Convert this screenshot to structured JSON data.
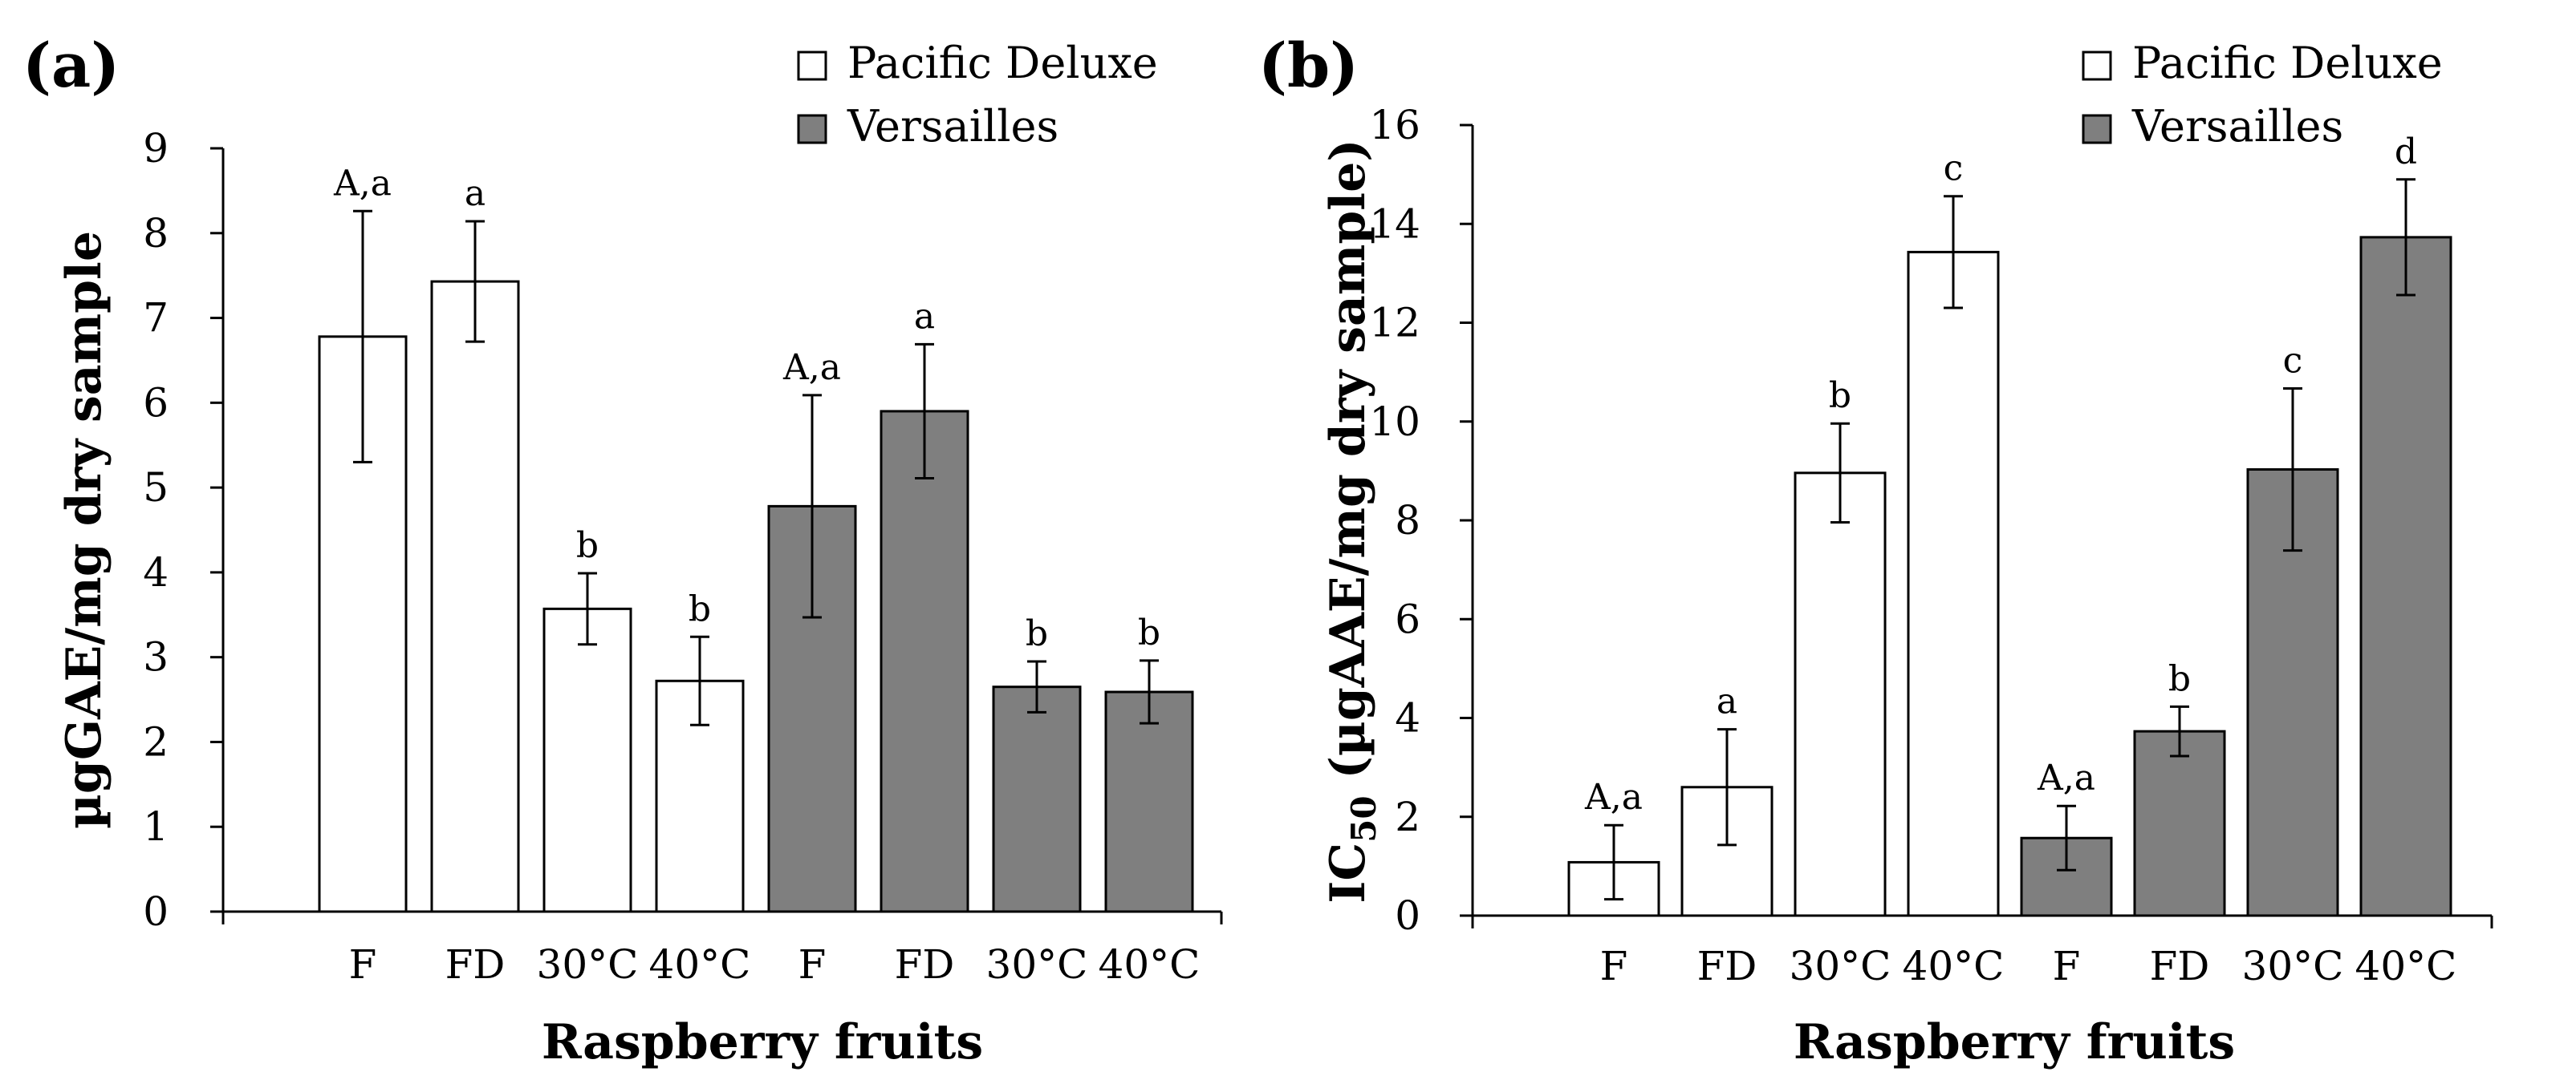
{
  "colors": {
    "pacific": "#ffffff",
    "versailles": "#7f7f7f",
    "stroke": "#000000"
  },
  "chart_data": [
    {
      "type": "bar",
      "panel_label": "(a)",
      "title": "",
      "xlabel": "Raspberry fruits",
      "ylabel": "µgGAE/mg dry sample",
      "ylim": [
        0,
        9
      ],
      "yticks": [
        0,
        1,
        2,
        3,
        4,
        5,
        6,
        7,
        8,
        9
      ],
      "categories": [
        "F",
        "FD",
        "30°C",
        "40°C",
        "F",
        "FD",
        "30°C",
        "40°C"
      ],
      "legend": [
        {
          "name": "Pacific Deluxe",
          "color": "#ffffff"
        },
        {
          "name": "Versailles",
          "color": "#7f7f7f"
        }
      ],
      "bars": [
        {
          "category": "F",
          "series": "Pacific Deluxe",
          "value": 6.78,
          "error": 1.48,
          "label": "A,a"
        },
        {
          "category": "FD",
          "series": "Pacific Deluxe",
          "value": 7.43,
          "error": 0.71,
          "label": "a"
        },
        {
          "category": "30°C",
          "series": "Pacific Deluxe",
          "value": 3.57,
          "error": 0.42,
          "label": "b"
        },
        {
          "category": "40°C",
          "series": "Pacific Deluxe",
          "value": 2.72,
          "error": 0.52,
          "label": "b"
        },
        {
          "category": "F",
          "series": "Versailles",
          "value": 4.78,
          "error": 1.31,
          "label": "A,a"
        },
        {
          "category": "FD",
          "series": "Versailles",
          "value": 5.9,
          "error": 0.79,
          "label": "a"
        },
        {
          "category": "30°C",
          "series": "Versailles",
          "value": 2.65,
          "error": 0.3,
          "label": "b"
        },
        {
          "category": "40°C",
          "series": "Versailles",
          "value": 2.59,
          "error": 0.37,
          "label": "b"
        }
      ]
    },
    {
      "type": "bar",
      "panel_label": "(b)",
      "title": "",
      "xlabel": "Raspberry fruits",
      "ylabel_main": "IC",
      "ylabel_sub": "50",
      "ylabel_rest": " (µgAAE/mg dry sample)",
      "ylim": [
        0,
        16
      ],
      "yticks": [
        0,
        2,
        4,
        6,
        8,
        10,
        12,
        14,
        16
      ],
      "categories": [
        "F",
        "FD",
        "30°C",
        "40°C",
        "F",
        "FD",
        "30°C",
        "40°C"
      ],
      "legend": [
        {
          "name": "Pacific Deluxe",
          "color": "#ffffff"
        },
        {
          "name": "Versailles",
          "color": "#7f7f7f"
        }
      ],
      "bars": [
        {
          "category": "F",
          "series": "Pacific Deluxe",
          "value": 1.08,
          "error": 0.75,
          "label": "A,a"
        },
        {
          "category": "FD",
          "series": "Pacific Deluxe",
          "value": 2.6,
          "error": 1.17,
          "label": "a"
        },
        {
          "category": "30°C",
          "series": "Pacific Deluxe",
          "value": 8.96,
          "error": 1.0,
          "label": "b"
        },
        {
          "category": "40°C",
          "series": "Pacific Deluxe",
          "value": 13.43,
          "error": 1.13,
          "label": "c"
        },
        {
          "category": "F",
          "series": "Versailles",
          "value": 1.57,
          "error": 0.65,
          "label": "A,a"
        },
        {
          "category": "FD",
          "series": "Versailles",
          "value": 3.73,
          "error": 0.5,
          "label": "b"
        },
        {
          "category": "30°C",
          "series": "Versailles",
          "value": 9.03,
          "error": 1.64,
          "label": "c"
        },
        {
          "category": "40°C",
          "series": "Versailles",
          "value": 13.73,
          "error": 1.17,
          "label": "d"
        }
      ]
    }
  ]
}
